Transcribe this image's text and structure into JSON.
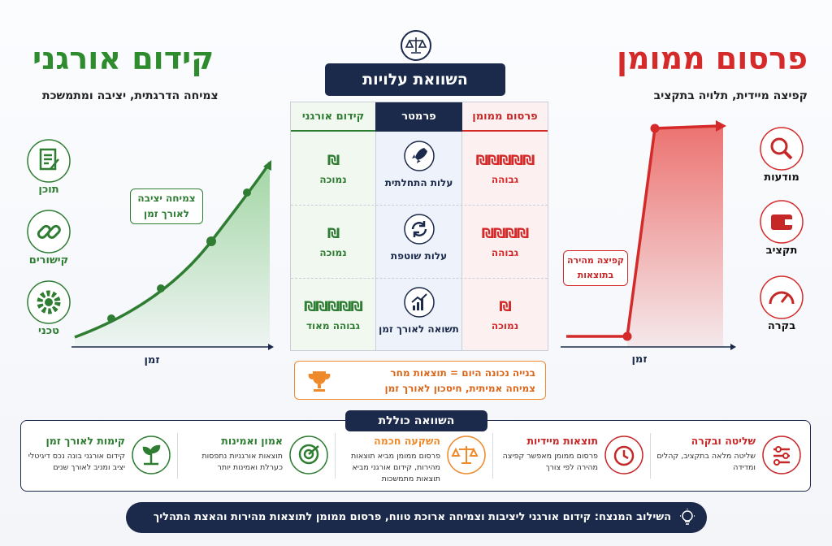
{
  "paid": {
    "title": "פרסום ממומן",
    "subtitle": "קפיצה מיידית, תלויה בתקציב",
    "icons": [
      "מודעות",
      "תקציב",
      "בקרה"
    ]
  },
  "organic": {
    "title": "קידום אורגני",
    "subtitle": "צמיחה הדרגתית, יציבה ומתמשכת",
    "icons": [
      "תוכן",
      "קישורים",
      "טכני"
    ]
  },
  "paid_chart": {
    "callout": [
      "קפיצה מהירה",
      "בתוצאות"
    ],
    "axis_label": "זמן"
  },
  "organic_chart": {
    "callout": [
      "צמיחה יציבה",
      "לאורך זמן"
    ],
    "axis_label": "זמן"
  },
  "comparison": {
    "title": "השוואת עלויות",
    "headers": [
      "פרסום ממומן",
      "פרמטר",
      "קידום אורגני"
    ],
    "rows": [
      {
        "paid_symbols": "₪₪₪₪₪",
        "paid_level": "גבוהה",
        "parameter": "עלות התחלתית",
        "organic_symbols": "₪",
        "organic_level": "נמוכה"
      },
      {
        "paid_symbols": "₪₪₪₪",
        "paid_level": "גבוהה",
        "parameter": "עלות שוטפת",
        "organic_symbols": "₪",
        "organic_level": "נמוכה"
      },
      {
        "paid_symbols": "₪",
        "paid_level": "נמוכה",
        "parameter": "תשואה לאורך זמן",
        "organic_symbols": "₪₪₪₪₪",
        "organic_level": "גבוהה מאוד"
      }
    ],
    "note": [
      "בנייה נכונה היום = תוצאות מחר",
      "צמיחה אמיתית, חיסכון לאורך זמן"
    ]
  },
  "summary": {
    "title": "השוואה כוללת",
    "cards": [
      {
        "title": "שליטה ובקרה",
        "text": "שליטה מלאה בתקציב, קהלים ומדידה"
      },
      {
        "title": "תוצאות מיידיות",
        "text": "פרסום ממומן מאפשר קפיצה מהירה לפי צורך"
      },
      {
        "title": "השקעה חכמה",
        "text": "פרסום ממומן מביא תוצאות מהירות, קידום אורגני מביא תוצאות מתמשכות"
      },
      {
        "title": "אמון ואמינות",
        "text": "תוצאות אורגניות נתפסות כערלת ואמינות יותר"
      },
      {
        "title": "קימות לאורך זמן",
        "text": "קידום אורגני בונה נכס דיגיטלי יציב ומניב לאורך שנים"
      }
    ]
  },
  "footer": "השילוב המנצח: קידום אורגני ליציבות וצמיחה ארוכת טווח, פרסום ממומן לתוצאות מהירות והאצת התהליך"
}
